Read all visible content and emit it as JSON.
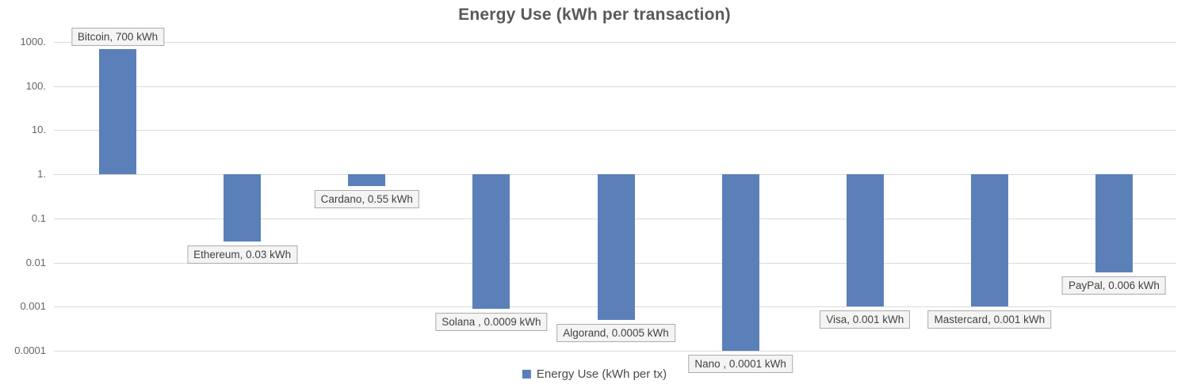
{
  "chart_data": {
    "type": "bar",
    "title": "Energy Use (kWh per transaction)",
    "legend": "Energy Use (kWh per tx)",
    "scale": "log10",
    "baseline": 1,
    "grid": true,
    "legend_position": "bottom-center",
    "y_ticks": [
      "1000.",
      "100.",
      "10.",
      "1.",
      "0.1",
      "0.01",
      "0.001",
      "0.0001"
    ],
    "y_tick_values": [
      1000,
      100,
      10,
      1,
      0.1,
      0.01,
      0.001,
      0.0001
    ],
    "ylim": [
      0.0001,
      1000
    ],
    "categories": [
      "Bitcoin",
      "Ethereum",
      "Cardano",
      "Solana",
      "Algorand",
      "Nano",
      "Visa",
      "Mastercard",
      "PayPal"
    ],
    "values": [
      700,
      0.03,
      0.55,
      0.0009,
      0.0005,
      0.0001,
      0.001,
      0.001,
      0.006
    ],
    "points": [
      {
        "category": "Bitcoin",
        "value": 700,
        "label": "Bitcoin, 700 kWh"
      },
      {
        "category": "Ethereum",
        "value": 0.03,
        "label": "Ethereum, 0.03 kWh"
      },
      {
        "category": "Cardano",
        "value": 0.55,
        "label": "Cardano, 0.55 kWh"
      },
      {
        "category": "Solana",
        "value": 0.0009,
        "label": "Solana , 0.0009 kWh"
      },
      {
        "category": "Algorand",
        "value": 0.0005,
        "label": "Algorand, 0.0005 kWh"
      },
      {
        "category": "Nano",
        "value": 0.0001,
        "label": "Nano , 0.0001 kWh"
      },
      {
        "category": "Visa",
        "value": 0.001,
        "label": "Visa, 0.001 kWh"
      },
      {
        "category": "Mastercard",
        "value": 0.001,
        "label": "Mastercard, 0.001 kWh"
      },
      {
        "category": "PayPal",
        "value": 0.006,
        "label": "PayPal, 0.006 kWh"
      }
    ],
    "colors": {
      "bar": "#5B7FB9",
      "gridline": "#DADADA",
      "title_text": "#595959",
      "axis_text": "#666666",
      "label_text": "#434343",
      "label_bg": "#F4F4F4",
      "label_border": "#ABABAB",
      "background": "#FFFFFF"
    }
  }
}
